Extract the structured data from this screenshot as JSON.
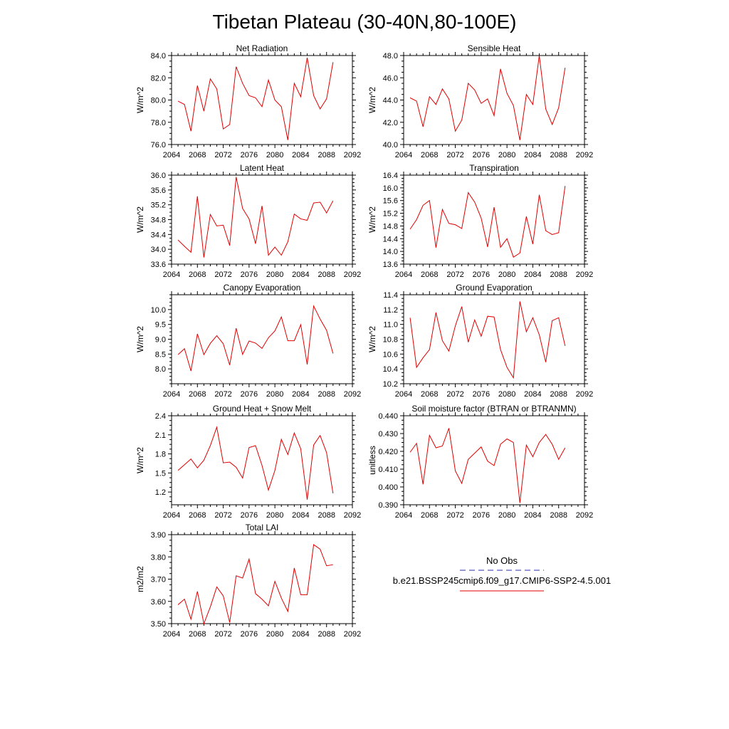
{
  "title": "Tibetan Plateau (30-40N,80-100E)",
  "legend": {
    "obs_label": "No Obs",
    "obs_color": "#2b2bb0",
    "case_label": "b.e21.BSSP245cmip6.f09_g17.CMIP6-SSP2-4.5.001",
    "case_color": "#e00000"
  },
  "chart_data": [
    {
      "type": "line",
      "title": "Net Radiation",
      "ylabel": "W/m^2",
      "xlim": [
        2064,
        2092
      ],
      "xticks": [
        2064,
        2068,
        2072,
        2076,
        2080,
        2084,
        2088,
        2092
      ],
      "ylim": [
        76.0,
        84.0
      ],
      "yticks": [
        76.0,
        78.0,
        80.0,
        82.0,
        84.0
      ],
      "ytick_labels": [
        "76.0",
        "78.0",
        "80.0",
        "82.0",
        "84.0"
      ],
      "series": [
        {
          "color": "#e00000",
          "x": [
            2065,
            2066,
            2067,
            2068,
            2069,
            2070,
            2071,
            2072,
            2073,
            2074,
            2075,
            2076,
            2077,
            2078,
            2079,
            2080,
            2081,
            2082,
            2083,
            2084,
            2085,
            2086,
            2087,
            2088,
            2089
          ],
          "values": [
            79.9,
            79.6,
            77.2,
            81.3,
            79.0,
            81.9,
            81.0,
            77.4,
            77.8,
            83.0,
            81.5,
            80.4,
            80.2,
            79.4,
            81.8,
            80.0,
            79.4,
            76.4,
            81.5,
            80.3,
            83.8,
            80.4,
            79.2,
            80.1,
            83.4
          ]
        }
      ]
    },
    {
      "type": "line",
      "title": "Sensible Heat",
      "ylabel": "W/m^2",
      "xlim": [
        2064,
        2092
      ],
      "xticks": [
        2064,
        2068,
        2072,
        2076,
        2080,
        2084,
        2088,
        2092
      ],
      "ylim": [
        40.0,
        48.0
      ],
      "yticks": [
        40.0,
        42.0,
        44.0,
        46.0,
        48.0
      ],
      "ytick_labels": [
        "40.0",
        "42.0",
        "44.0",
        "46.0",
        "48.0"
      ],
      "series": [
        {
          "color": "#e00000",
          "x": [
            2065,
            2066,
            2067,
            2068,
            2069,
            2070,
            2071,
            2072,
            2073,
            2074,
            2075,
            2076,
            2077,
            2078,
            2079,
            2080,
            2081,
            2082,
            2083,
            2084,
            2085,
            2086,
            2087,
            2088,
            2089
          ],
          "values": [
            44.2,
            43.9,
            41.6,
            44.3,
            43.6,
            45.0,
            44.1,
            41.2,
            42.2,
            45.5,
            44.9,
            43.7,
            44.1,
            42.6,
            46.8,
            44.6,
            43.5,
            40.4,
            44.5,
            43.6,
            48.0,
            43.2,
            41.8,
            43.3,
            46.9
          ]
        }
      ]
    },
    {
      "type": "line",
      "title": "Latent Heat",
      "ylabel": "W/m^2",
      "xlim": [
        2064,
        2092
      ],
      "xticks": [
        2064,
        2068,
        2072,
        2076,
        2080,
        2084,
        2088,
        2092
      ],
      "ylim": [
        33.6,
        36.0
      ],
      "yticks": [
        33.6,
        34.0,
        34.4,
        34.8,
        35.2,
        35.6,
        36.0
      ],
      "ytick_labels": [
        "33.6",
        "34.0",
        "34.4",
        "34.8",
        "35.2",
        "35.6",
        "36.0"
      ],
      "series": [
        {
          "color": "#e00000",
          "x": [
            2065,
            2066,
            2067,
            2068,
            2069,
            2070,
            2071,
            2072,
            2073,
            2074,
            2075,
            2076,
            2077,
            2078,
            2079,
            2080,
            2081,
            2082,
            2083,
            2084,
            2085,
            2086,
            2087,
            2088,
            2089
          ],
          "values": [
            34.25,
            34.08,
            33.92,
            35.43,
            33.78,
            34.94,
            34.63,
            34.65,
            34.1,
            35.95,
            35.1,
            34.82,
            34.15,
            35.17,
            33.84,
            34.06,
            33.84,
            34.2,
            34.95,
            34.82,
            34.78,
            35.25,
            35.27,
            34.98,
            35.31
          ]
        }
      ]
    },
    {
      "type": "line",
      "title": "Transpiration",
      "ylabel": "W/m^2",
      "xlim": [
        2064,
        2092
      ],
      "xticks": [
        2064,
        2068,
        2072,
        2076,
        2080,
        2084,
        2088,
        2092
      ],
      "ylim": [
        13.6,
        16.4
      ],
      "yticks": [
        13.6,
        14.0,
        14.4,
        14.8,
        15.2,
        15.6,
        16.0,
        16.4
      ],
      "ytick_labels": [
        "13.6",
        "14.0",
        "14.4",
        "14.8",
        "15.2",
        "15.6",
        "16.0",
        "16.4"
      ],
      "series": [
        {
          "color": "#e00000",
          "x": [
            2065,
            2066,
            2067,
            2068,
            2069,
            2070,
            2071,
            2072,
            2073,
            2074,
            2075,
            2076,
            2077,
            2078,
            2079,
            2080,
            2081,
            2082,
            2083,
            2084,
            2085,
            2086,
            2087,
            2088,
            2089
          ],
          "values": [
            14.7,
            15.0,
            15.45,
            15.6,
            14.12,
            15.32,
            14.88,
            14.84,
            14.72,
            15.85,
            15.55,
            15.05,
            14.14,
            15.39,
            14.13,
            14.4,
            13.82,
            13.95,
            15.1,
            14.23,
            15.78,
            14.65,
            14.53,
            14.59,
            16.06
          ]
        }
      ]
    },
    {
      "type": "line",
      "title": "Canopy Evaporation",
      "ylabel": "W/m^2",
      "xlim": [
        2064,
        2092
      ],
      "xticks": [
        2064,
        2068,
        2072,
        2076,
        2080,
        2084,
        2088,
        2092
      ],
      "ylim": [
        7.5,
        10.5
      ],
      "yticks": [
        8.0,
        8.5,
        9.0,
        9.5,
        10.0
      ],
      "ytick_labels": [
        "8.0",
        "8.5",
        "9.0",
        "9.5",
        "10.0"
      ],
      "series": [
        {
          "color": "#e00000",
          "x": [
            2065,
            2066,
            2067,
            2068,
            2069,
            2070,
            2071,
            2072,
            2073,
            2074,
            2075,
            2076,
            2077,
            2078,
            2079,
            2080,
            2081,
            2082,
            2083,
            2084,
            2085,
            2086,
            2087,
            2088,
            2089
          ],
          "values": [
            8.48,
            8.68,
            7.93,
            9.18,
            8.48,
            8.86,
            9.12,
            8.85,
            8.13,
            9.37,
            8.49,
            8.94,
            8.87,
            8.69,
            9.05,
            9.28,
            9.75,
            8.95,
            8.95,
            9.49,
            8.15,
            10.12,
            9.68,
            9.3,
            8.52
          ]
        }
      ]
    },
    {
      "type": "line",
      "title": "Ground Evaporation",
      "ylabel": "W/m^2",
      "xlim": [
        2064,
        2092
      ],
      "xticks": [
        2064,
        2068,
        2072,
        2076,
        2080,
        2084,
        2088,
        2092
      ],
      "ylim": [
        10.2,
        11.4
      ],
      "yticks": [
        10.2,
        10.4,
        10.6,
        10.8,
        11.0,
        11.2,
        11.4
      ],
      "ytick_labels": [
        "10.2",
        "10.4",
        "10.6",
        "10.8",
        "11.0",
        "11.2",
        "11.4"
      ],
      "series": [
        {
          "color": "#e00000",
          "x": [
            2065,
            2066,
            2067,
            2068,
            2069,
            2070,
            2071,
            2072,
            2073,
            2074,
            2075,
            2076,
            2077,
            2078,
            2079,
            2080,
            2081,
            2082,
            2083,
            2084,
            2085,
            2086,
            2087,
            2088,
            2089
          ],
          "values": [
            11.09,
            10.42,
            10.55,
            10.66,
            11.16,
            10.78,
            10.64,
            10.98,
            11.24,
            10.76,
            11.06,
            10.84,
            11.11,
            11.1,
            10.66,
            10.42,
            10.28,
            11.31,
            10.9,
            11.09,
            10.86,
            10.49,
            11.05,
            11.09,
            10.71
          ]
        }
      ]
    },
    {
      "type": "line",
      "title": "Ground Heat + Snow Melt",
      "ylabel": "W/m^2",
      "xlim": [
        2064,
        2092
      ],
      "xticks": [
        2064,
        2068,
        2072,
        2076,
        2080,
        2084,
        2088,
        2092
      ],
      "ylim": [
        1.0,
        2.4
      ],
      "yticks": [
        1.2,
        1.5,
        1.8,
        2.1,
        2.4
      ],
      "ytick_labels": [
        "1.2",
        "1.5",
        "1.8",
        "2.1",
        "2.4"
      ],
      "series": [
        {
          "color": "#e00000",
          "x": [
            2065,
            2066,
            2067,
            2068,
            2069,
            2070,
            2071,
            2072,
            2073,
            2074,
            2075,
            2076,
            2077,
            2078,
            2079,
            2080,
            2081,
            2082,
            2083,
            2084,
            2085,
            2086,
            2087,
            2088,
            2089
          ],
          "values": [
            1.54,
            1.63,
            1.72,
            1.58,
            1.7,
            1.93,
            2.22,
            1.66,
            1.67,
            1.59,
            1.42,
            1.9,
            1.93,
            1.62,
            1.23,
            1.54,
            2.03,
            1.79,
            2.13,
            1.88,
            1.08,
            1.94,
            2.09,
            1.82,
            1.18
          ]
        }
      ]
    },
    {
      "type": "line",
      "title": "Soil moisture factor (BTRAN or BTRANMN)",
      "ylabel": "unitless",
      "xlim": [
        2064,
        2092
      ],
      "xticks": [
        2064,
        2068,
        2072,
        2076,
        2080,
        2084,
        2088,
        2092
      ],
      "ylim": [
        0.39,
        0.44
      ],
      "yticks": [
        0.39,
        0.4,
        0.41,
        0.42,
        0.43,
        0.44
      ],
      "ytick_labels": [
        "0.390",
        "0.400",
        "0.410",
        "0.420",
        "0.430",
        "0.440"
      ],
      "series": [
        {
          "color": "#e00000",
          "x": [
            2065,
            2066,
            2067,
            2068,
            2069,
            2070,
            2071,
            2072,
            2073,
            2074,
            2075,
            2076,
            2077,
            2078,
            2079,
            2080,
            2081,
            2082,
            2083,
            2084,
            2085,
            2086,
            2087,
            2088,
            2089
          ],
          "values": [
            0.4195,
            0.4245,
            0.4015,
            0.429,
            0.422,
            0.423,
            0.433,
            0.409,
            0.402,
            0.4155,
            0.419,
            0.4225,
            0.4145,
            0.412,
            0.424,
            0.427,
            0.425,
            0.391,
            0.4235,
            0.417,
            0.425,
            0.4295,
            0.424,
            0.4155,
            0.422
          ]
        }
      ]
    },
    {
      "type": "line",
      "title": "Total LAI",
      "ylabel": "m2/m2",
      "xlim": [
        2064,
        2092
      ],
      "xticks": [
        2064,
        2068,
        2072,
        2076,
        2080,
        2084,
        2088,
        2092
      ],
      "ylim": [
        3.5,
        3.9
      ],
      "yticks": [
        3.5,
        3.6,
        3.7,
        3.8,
        3.9
      ],
      "ytick_labels": [
        "3.50",
        "3.60",
        "3.70",
        "3.80",
        "3.90"
      ],
      "series": [
        {
          "color": "#e00000",
          "x": [
            2065,
            2066,
            2067,
            2068,
            2069,
            2070,
            2071,
            2072,
            2073,
            2074,
            2075,
            2076,
            2077,
            2078,
            2079,
            2080,
            2081,
            2082,
            2083,
            2084,
            2085,
            2086,
            2087,
            2088,
            2089
          ],
          "values": [
            3.585,
            3.61,
            3.52,
            3.645,
            3.5,
            3.575,
            3.665,
            3.625,
            3.505,
            3.715,
            3.705,
            3.79,
            3.635,
            3.61,
            3.58,
            3.69,
            3.615,
            3.555,
            3.75,
            3.63,
            3.63,
            3.855,
            3.835,
            3.76,
            3.765
          ]
        }
      ]
    }
  ]
}
